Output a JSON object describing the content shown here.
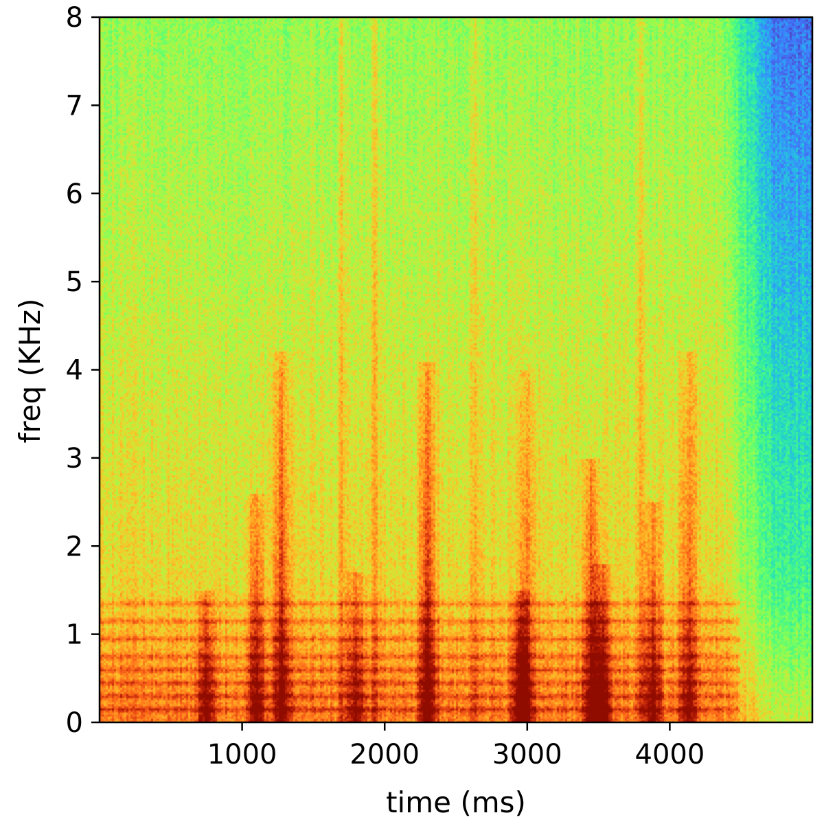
{
  "chart_data": {
    "type": "heatmap",
    "subtype": "spectrogram",
    "title": "",
    "xlabel": "time (ms)",
    "ylabel": "freq (KHz)",
    "xlim": [
      0,
      5000
    ],
    "ylim": [
      0,
      8
    ],
    "x_ticks": [
      1000,
      2000,
      3000,
      4000
    ],
    "x_tick_labels": [
      "1000",
      "2000",
      "3000",
      "4000"
    ],
    "y_ticks": [
      0,
      1,
      2,
      3,
      4,
      5,
      6,
      7,
      8
    ],
    "y_tick_labels": [
      "0",
      "1",
      "2",
      "3",
      "4",
      "5",
      "6",
      "7",
      "8"
    ],
    "grid": false,
    "legend": "none",
    "colormap": "turbo",
    "colors": {
      "low": "#30123b",
      "mid_low": "#28bceb",
      "mid": "#a4fc3c",
      "mid_high": "#fb8022",
      "high": "#7a0403"
    },
    "energy_bursts": [
      {
        "t_ms": 750,
        "f_max_khz": 1.5,
        "intensity": 0.85
      },
      {
        "t_ms": 1100,
        "f_max_khz": 2.6,
        "intensity": 0.85
      },
      {
        "t_ms": 1280,
        "f_max_khz": 4.2,
        "intensity": 0.95
      },
      {
        "t_ms": 1700,
        "f_max_khz": 8.0,
        "intensity": 0.6
      },
      {
        "t_ms": 1800,
        "f_max_khz": 1.7,
        "intensity": 0.75
      },
      {
        "t_ms": 1930,
        "f_max_khz": 8.0,
        "intensity": 0.6
      },
      {
        "t_ms": 2300,
        "f_max_khz": 4.1,
        "intensity": 1.0
      },
      {
        "t_ms": 2630,
        "f_max_khz": 8.0,
        "intensity": 0.5
      },
      {
        "t_ms": 2950,
        "f_max_khz": 1.5,
        "intensity": 0.85
      },
      {
        "t_ms": 3000,
        "f_max_khz": 4.0,
        "intensity": 0.6
      },
      {
        "t_ms": 3450,
        "f_max_khz": 3.0,
        "intensity": 0.95
      },
      {
        "t_ms": 3530,
        "f_max_khz": 1.8,
        "intensity": 1.0
      },
      {
        "t_ms": 3800,
        "f_max_khz": 8.0,
        "intensity": 0.6
      },
      {
        "t_ms": 3880,
        "f_max_khz": 2.5,
        "intensity": 0.8
      },
      {
        "t_ms": 4130,
        "f_max_khz": 4.2,
        "intensity": 0.75
      }
    ],
    "harmonic_bands_khz": [
      0.15,
      0.3,
      0.45,
      0.6,
      0.75,
      0.95,
      1.15,
      1.35
    ],
    "silence_from_ms": 4350
  }
}
